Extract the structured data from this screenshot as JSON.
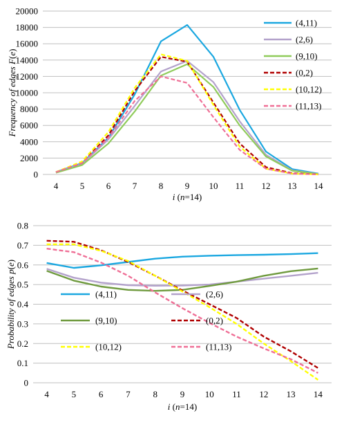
{
  "chart_data": [
    {
      "type": "line",
      "title": "",
      "xlabel": {
        "var": "i",
        "rest": " (",
        "n_var": "n",
        "n_rest": "=14)"
      },
      "ylabel": {
        "prefix": "Frequency of edges ",
        "fn": "F",
        "open": "(",
        "arg": "e",
        "close": ")"
      },
      "x": [
        4,
        5,
        6,
        7,
        8,
        9,
        10,
        11,
        12,
        13,
        14
      ],
      "x_tick_labels": [
        "4",
        "5",
        "6",
        "7",
        "8",
        "9",
        "10",
        "11",
        "12",
        "13",
        "14"
      ],
      "ylim": [
        0,
        20000
      ],
      "y_tick_labels": [
        "0",
        "2000",
        "4000",
        "6000",
        "8000",
        "10000",
        "12000",
        "14000",
        "16000",
        "18000",
        "20000"
      ],
      "grid": "horizontal",
      "legend_position": "right",
      "series": [
        {
          "name": "(4,11)",
          "color": "#1aa7e0",
          "style": "solid",
          "values": [
            300,
            1400,
            4500,
            9800,
            16300,
            18300,
            14400,
            7900,
            2800,
            650,
            100
          ]
        },
        {
          "name": "(2,6)",
          "color": "#b3a2cb",
          "style": "solid",
          "values": [
            250,
            1300,
            4300,
            8400,
            12600,
            13900,
            11300,
            6500,
            2400,
            500,
            50
          ]
        },
        {
          "name": "(9,10)",
          "color": "#8fcb5a",
          "style": "solid",
          "values": [
            200,
            1150,
            3800,
            7700,
            12100,
            13500,
            10700,
            6000,
            2200,
            450,
            30
          ]
        },
        {
          "name": "(0,2)",
          "color": "#b00000",
          "style": "dashed",
          "values": [
            300,
            1400,
            4800,
            10200,
            14400,
            13800,
            8800,
            3800,
            900,
            150,
            0
          ]
        },
        {
          "name": "(10,12)",
          "color": "#ffff00",
          "style": "dashed",
          "values": [
            300,
            1600,
            5200,
            10600,
            14700,
            13900,
            8500,
            3400,
            700,
            100,
            0
          ]
        },
        {
          "name": "(11,13)",
          "color": "#ef6f96",
          "style": "dashed",
          "values": [
            280,
            1400,
            4500,
            9000,
            12000,
            11200,
            7000,
            3000,
            700,
            100,
            0
          ]
        }
      ]
    },
    {
      "type": "line",
      "title": "",
      "xlabel": {
        "var": "i",
        "rest": " (",
        "n_var": "n",
        "n_rest": "=14)"
      },
      "ylabel": {
        "prefix": "Probability of edges ",
        "fn": "p",
        "open": "(",
        "arg": "e",
        "close": ")"
      },
      "x": [
        4,
        5,
        6,
        7,
        8,
        9,
        10,
        11,
        12,
        13,
        14
      ],
      "x_tick_labels": [
        "4",
        "5",
        "6",
        "7",
        "8",
        "9",
        "10",
        "11",
        "12",
        "13",
        "14"
      ],
      "ylim": [
        0,
        0.8
      ],
      "y_tick_labels": [
        "0",
        "0.1",
        "0.2",
        "0.3",
        "0.4",
        "0.5",
        "0.6",
        "0.7",
        "0.8"
      ],
      "grid": "horizontal",
      "legend_position": "inside-left",
      "series": [
        {
          "name": "(4,11)",
          "color": "#1aa7e0",
          "style": "solid",
          "values": [
            0.61,
            0.585,
            0.598,
            0.615,
            0.632,
            0.642,
            0.647,
            0.65,
            0.652,
            0.655,
            0.66
          ]
        },
        {
          "name": "(2,6)",
          "color": "#b3a2cb",
          "style": "solid",
          "values": [
            0.58,
            0.535,
            0.51,
            0.497,
            0.494,
            0.495,
            0.5,
            0.515,
            0.53,
            0.545,
            0.56
          ]
        },
        {
          "name": "(9,10)",
          "color": "#6f9a3e",
          "style": "solid",
          "values": [
            0.57,
            0.52,
            0.49,
            0.473,
            0.468,
            0.473,
            0.493,
            0.515,
            0.545,
            0.568,
            0.582
          ]
        },
        {
          "name": "(0,2)",
          "color": "#b00000",
          "style": "dashed",
          "values": [
            0.723,
            0.718,
            0.675,
            0.615,
            0.545,
            0.47,
            0.4,
            0.33,
            0.235,
            0.16,
            0.075
          ]
        },
        {
          "name": "(10,12)",
          "color": "#ffff00",
          "style": "dashed",
          "values": [
            0.705,
            0.705,
            0.672,
            0.62,
            0.545,
            0.465,
            0.385,
            0.3,
            0.2,
            0.11,
            0.015
          ]
        },
        {
          "name": "(11,13)",
          "color": "#ef6f96",
          "style": "dashed",
          "values": [
            0.683,
            0.665,
            0.612,
            0.545,
            0.46,
            0.38,
            0.305,
            0.235,
            0.175,
            0.12,
            0.05
          ]
        }
      ]
    }
  ]
}
